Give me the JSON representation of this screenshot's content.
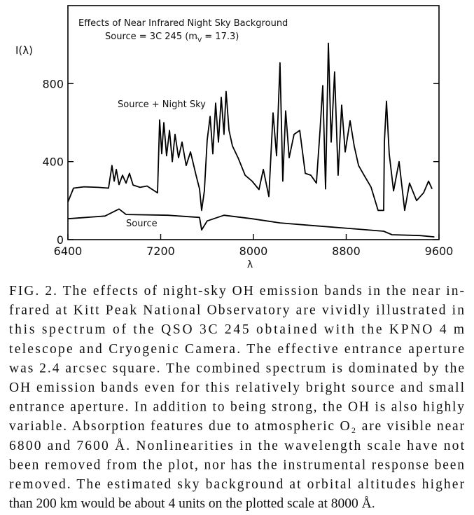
{
  "chart_data": {
    "type": "line",
    "title": "Effects of Near Infrared Night Sky Background",
    "subtitle": [
      "Source = 3C 245 (m",
      "V",
      " = 17.3)"
    ],
    "x_label": "λ",
    "y_label": "I(λ)",
    "xlim": [
      6400,
      9600
    ],
    "xticks": [
      6400,
      7200,
      8000,
      8800,
      9600
    ],
    "ylim": [
      0,
      1200
    ],
    "yticks": [
      0,
      400,
      800
    ],
    "series": [
      {
        "name": "Source + Night Sky",
        "color": "#000000",
        "x": [
          6400,
          6448,
          6539,
          6660,
          6750,
          6780,
          6799,
          6817,
          6841,
          6871,
          6901,
          6931,
          6962,
          7022,
          7082,
          7173,
          7191,
          7209,
          7227,
          7251,
          7276,
          7300,
          7324,
          7354,
          7384,
          7420,
          7457,
          7505,
          7535,
          7553,
          7577,
          7601,
          7626,
          7650,
          7674,
          7698,
          7722,
          7746,
          7764,
          7789,
          7819,
          7867,
          7928,
          7988,
          8048,
          8085,
          8133,
          8169,
          8199,
          8229,
          8253,
          8278,
          8308,
          8350,
          8399,
          8447,
          8495,
          8543,
          8574,
          8598,
          8622,
          8646,
          8670,
          8700,
          8730,
          8761,
          8791,
          8833,
          8869,
          8906,
          8954,
          9014,
          9075,
          9123,
          9129,
          9147,
          9171,
          9208,
          9256,
          9304,
          9346,
          9407,
          9467,
          9510,
          9540
        ],
        "values": [
          193,
          264,
          271,
          268,
          264,
          380,
          300,
          360,
          282,
          330,
          290,
          340,
          280,
          268,
          275,
          240,
          614,
          440,
          600,
          430,
          560,
          400,
          540,
          420,
          500,
          380,
          450,
          330,
          260,
          150,
          250,
          510,
          632,
          440,
          700,
          500,
          730,
          540,
          760,
          560,
          480,
          420,
          330,
          300,
          257,
          360,
          221,
          650,
          430,
          907,
          300,
          660,
          420,
          540,
          560,
          340,
          330,
          290,
          560,
          790,
          260,
          1007,
          500,
          860,
          330,
          690,
          450,
          610,
          480,
          380,
          330,
          270,
          150,
          150,
          500,
          710,
          440,
          250,
          400,
          150,
          290,
          200,
          240,
          300,
          260
        ]
      },
      {
        "name": "Source",
        "color": "#000000",
        "x": [
          6400,
          6720,
          6841,
          6901,
          7263,
          7535,
          7553,
          7601,
          7746,
          7988,
          8229,
          8530,
          8833,
          9123,
          9195,
          9437,
          9560
        ],
        "values": [
          107,
          121,
          157,
          129,
          125,
          114,
          50,
          96,
          125,
          107,
          86,
          71,
          57,
          43,
          25,
          21,
          14
        ]
      }
    ]
  },
  "caption": [
    "FIG. 2. The effects of night-sky OH emission bands in the near in-",
    "frared at Kitt Peak National Observatory are vividly illustrated in",
    "this spectrum of the QSO 3C 245 obtained with the KPNO 4 m",
    "telescope and Cryogenic Camera. The effective entrance aperture",
    "was 2.4 arcsec square. The combined spectrum is dominated by the",
    "OH emission bands even for this relatively bright source and small",
    "entrance aperture. In addition to being strong, the OH is also highly",
    "variable. Absorption features due to atmospheric O₂ are visible near",
    "6800 and 7600 Å. Nonlinearities in the wavelength scale have not",
    "been removed from the plot, nor has the instrumental response been",
    "removed. The estimated sky background at orbital altitudes higher",
    "than 200 km would be about 4 units on the plotted scale at 8000 Å."
  ]
}
